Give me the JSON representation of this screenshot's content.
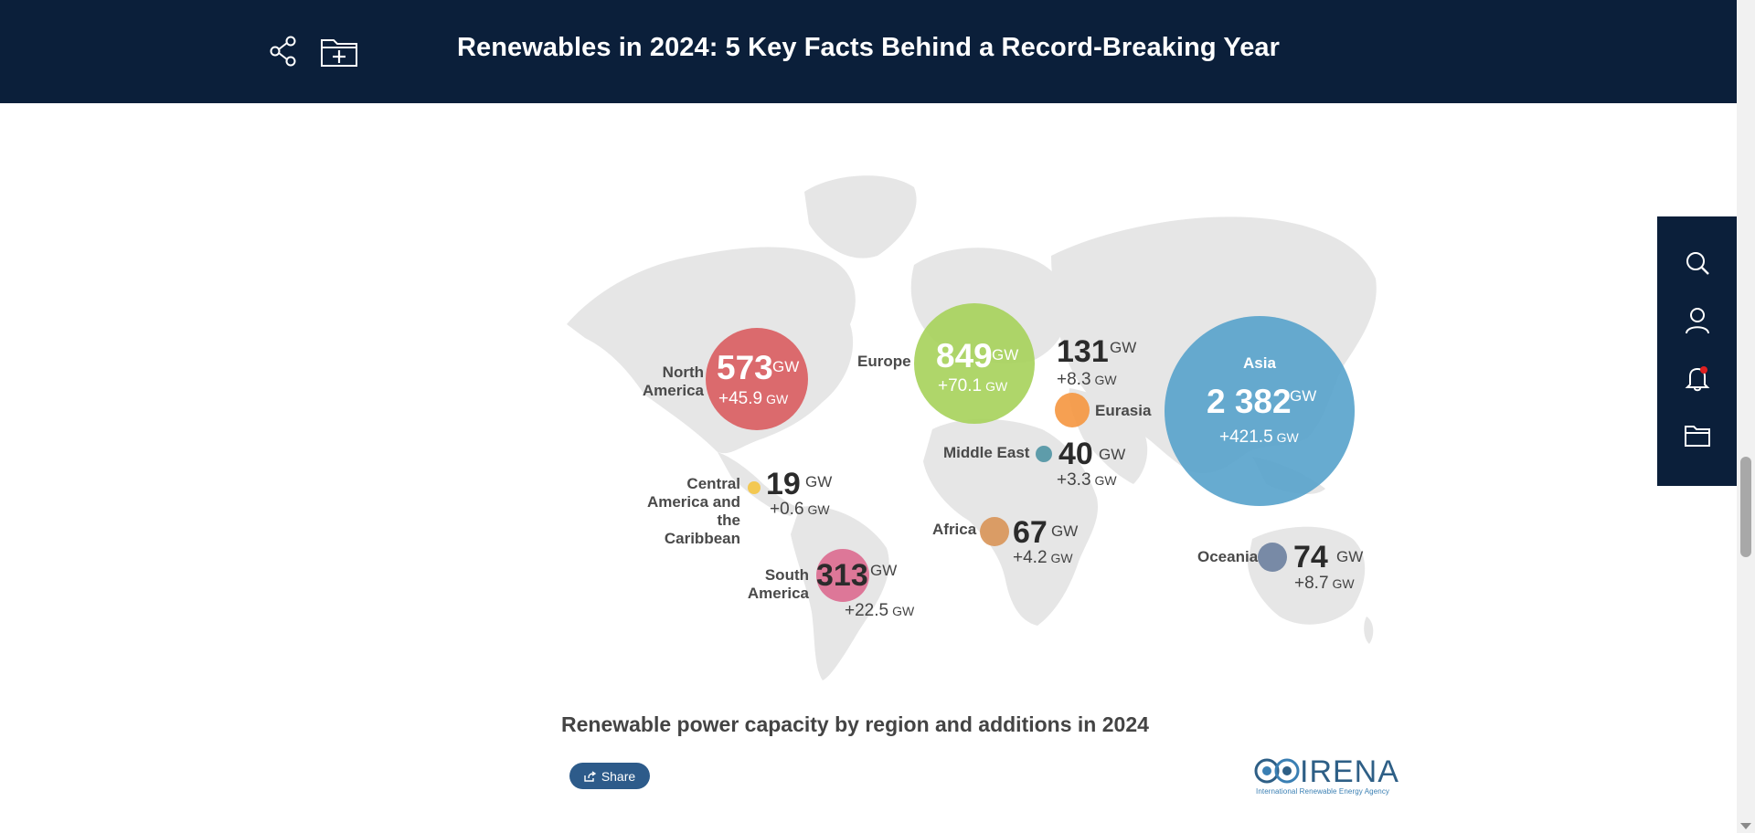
{
  "header": {
    "title": "Renewables in 2024: 5 Key Facts Behind a Record-Breaking Year",
    "share_icon": "share-icon",
    "save_icon": "folder-plus-icon"
  },
  "sidebar": {
    "items": [
      "search-icon",
      "user-icon",
      "bell-icon",
      "folder-icon"
    ],
    "notification_color": "#e02020"
  },
  "map": {
    "regions": [
      {
        "name": "North America",
        "name_l1": "North",
        "name_l2": "America",
        "capacity": "573",
        "unit": "GW",
        "addition": "+45.9",
        "add_unit": "GW",
        "color": "#d9595c"
      },
      {
        "name": "Europe",
        "capacity": "849",
        "unit": "GW",
        "addition": "+70.1",
        "add_unit": "GW",
        "color": "#a6d25a"
      },
      {
        "name": "Eurasia",
        "capacity": "131",
        "unit": "GW",
        "addition": "+8.3",
        "add_unit": "GW",
        "color": "#f5963f"
      },
      {
        "name": "Middle East",
        "capacity": "40",
        "unit": "GW",
        "addition": "+3.3",
        "add_unit": "GW",
        "color": "#4f94a3"
      },
      {
        "name": "Asia",
        "capacity": "2 382",
        "unit": "GW",
        "addition": "+421.5",
        "add_unit": "GW",
        "color": "#5aa4cc"
      },
      {
        "name": "Central America and the Caribbean",
        "name_l1": "Central",
        "name_l2": "America and",
        "name_l3": "the Caribbean",
        "capacity": "19",
        "unit": "GW",
        "addition": "+0.6",
        "add_unit": "GW",
        "color": "#f3c64a"
      },
      {
        "name": "Africa",
        "capacity": "67",
        "unit": "GW",
        "addition": "+4.2",
        "add_unit": "GW",
        "color": "#d89457"
      },
      {
        "name": "South America",
        "name_l1": "South",
        "name_l2": "America",
        "capacity": "313",
        "unit": "GW",
        "addition": "+22.5",
        "add_unit": "GW",
        "color": "#db6a8f"
      },
      {
        "name": "Oceania",
        "capacity": "74",
        "unit": "GW",
        "addition": "+8.7",
        "add_unit": "GW",
        "color": "#6b7f9e"
      }
    ],
    "caption": "Renewable power capacity by region and additions in 2024"
  },
  "share": {
    "label": "Share"
  },
  "logo": {
    "word": "IRENA",
    "sub": "International Renewable Energy Agency"
  }
}
